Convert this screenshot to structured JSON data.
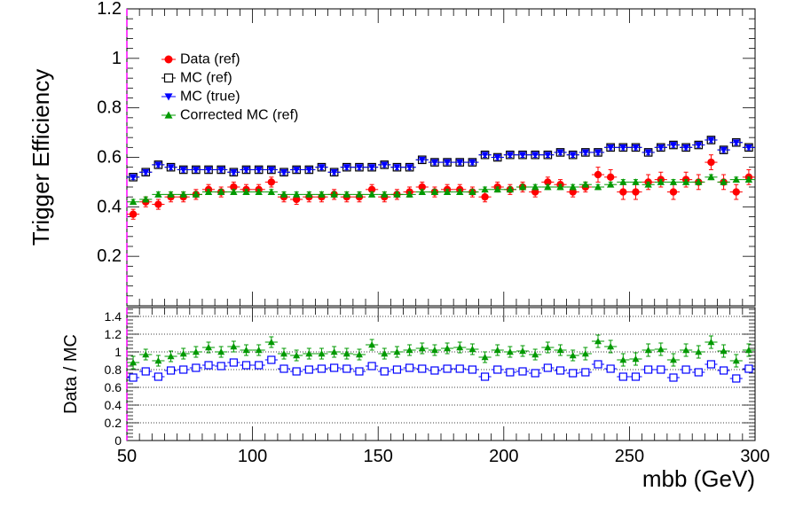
{
  "chart_data": [
    {
      "type": "scatter",
      "title": "",
      "xlabel": "",
      "ylabel": "Trigger Efficiency",
      "xlim": [
        50,
        300
      ],
      "ylim": [
        0,
        1.2
      ],
      "yticks": [
        0.2,
        0.4,
        0.6,
        0.8,
        1,
        1.2
      ],
      "yticklabels": [
        "0.2",
        "0.4",
        "0.6",
        "0.8",
        "1",
        "1.2"
      ],
      "legend_position": "top-left",
      "x": [
        52.5,
        57.5,
        62.5,
        67.5,
        72.5,
        77.5,
        82.5,
        87.5,
        92.5,
        97.5,
        102.5,
        107.5,
        112.5,
        117.5,
        122.5,
        127.5,
        132.5,
        137.5,
        142.5,
        147.5,
        152.5,
        157.5,
        162.5,
        167.5,
        172.5,
        177.5,
        182.5,
        187.5,
        192.5,
        197.5,
        202.5,
        207.5,
        212.5,
        217.5,
        222.5,
        227.5,
        232.5,
        237.5,
        242.5,
        247.5,
        252.5,
        257.5,
        262.5,
        267.5,
        272.5,
        277.5,
        282.5,
        287.5,
        292.5,
        297.5
      ],
      "series": [
        {
          "name": "Data (ref)",
          "marker": "circle",
          "color": "#ff0000",
          "values": [
            0.37,
            0.42,
            0.41,
            0.44,
            0.44,
            0.45,
            0.47,
            0.46,
            0.48,
            0.47,
            0.47,
            0.5,
            0.44,
            0.43,
            0.44,
            0.44,
            0.45,
            0.44,
            0.44,
            0.47,
            0.44,
            0.45,
            0.46,
            0.48,
            0.46,
            0.47,
            0.47,
            0.46,
            0.44,
            0.48,
            0.47,
            0.48,
            0.46,
            0.5,
            0.49,
            0.46,
            0.48,
            0.53,
            0.52,
            0.46,
            0.46,
            0.5,
            0.51,
            0.46,
            0.51,
            0.5,
            0.58,
            0.5,
            0.46,
            0.52
          ],
          "errors": [
            0.02,
            0.02,
            0.02,
            0.02,
            0.02,
            0.02,
            0.02,
            0.02,
            0.02,
            0.02,
            0.02,
            0.02,
            0.02,
            0.02,
            0.02,
            0.02,
            0.02,
            0.02,
            0.02,
            0.02,
            0.02,
            0.02,
            0.02,
            0.02,
            0.02,
            0.02,
            0.02,
            0.02,
            0.02,
            0.02,
            0.02,
            0.02,
            0.02,
            0.02,
            0.02,
            0.02,
            0.02,
            0.03,
            0.03,
            0.03,
            0.03,
            0.03,
            0.03,
            0.03,
            0.03,
            0.03,
            0.03,
            0.03,
            0.03,
            0.03
          ]
        },
        {
          "name": "MC (ref)",
          "marker": "open-square",
          "color": "#000000",
          "values": [
            0.52,
            0.54,
            0.57,
            0.56,
            0.55,
            0.55,
            0.55,
            0.55,
            0.54,
            0.55,
            0.55,
            0.55,
            0.54,
            0.55,
            0.55,
            0.56,
            0.54,
            0.56,
            0.56,
            0.56,
            0.57,
            0.56,
            0.56,
            0.59,
            0.58,
            0.58,
            0.58,
            0.58,
            0.61,
            0.6,
            0.61,
            0.61,
            0.61,
            0.61,
            0.62,
            0.61,
            0.62,
            0.62,
            0.64,
            0.64,
            0.64,
            0.62,
            0.64,
            0.65,
            0.64,
            0.65,
            0.67,
            0.63,
            0.66,
            0.64
          ],
          "errors": [
            0.01,
            0.01,
            0.01,
            0.01,
            0.01,
            0.01,
            0.01,
            0.01,
            0.01,
            0.01,
            0.01,
            0.01,
            0.01,
            0.01,
            0.01,
            0.01,
            0.01,
            0.01,
            0.01,
            0.01,
            0.01,
            0.01,
            0.01,
            0.01,
            0.01,
            0.01,
            0.01,
            0.01,
            0.01,
            0.01,
            0.01,
            0.01,
            0.01,
            0.01,
            0.01,
            0.01,
            0.01,
            0.01,
            0.01,
            0.01,
            0.01,
            0.01,
            0.01,
            0.01,
            0.01,
            0.01,
            0.01,
            0.01,
            0.01,
            0.01
          ]
        },
        {
          "name": "MC (true)",
          "marker": "down-triangle",
          "color": "#0000ff",
          "values": [
            0.52,
            0.54,
            0.57,
            0.56,
            0.55,
            0.55,
            0.55,
            0.55,
            0.54,
            0.55,
            0.55,
            0.55,
            0.54,
            0.55,
            0.55,
            0.56,
            0.54,
            0.56,
            0.56,
            0.56,
            0.57,
            0.56,
            0.56,
            0.59,
            0.58,
            0.58,
            0.58,
            0.58,
            0.61,
            0.6,
            0.61,
            0.61,
            0.61,
            0.61,
            0.62,
            0.61,
            0.62,
            0.62,
            0.64,
            0.64,
            0.64,
            0.62,
            0.64,
            0.65,
            0.64,
            0.65,
            0.67,
            0.63,
            0.66,
            0.64
          ],
          "errors": [
            0.01,
            0.01,
            0.01,
            0.01,
            0.01,
            0.01,
            0.01,
            0.01,
            0.01,
            0.01,
            0.01,
            0.01,
            0.01,
            0.01,
            0.01,
            0.01,
            0.01,
            0.01,
            0.01,
            0.01,
            0.01,
            0.01,
            0.01,
            0.01,
            0.01,
            0.01,
            0.01,
            0.01,
            0.01,
            0.01,
            0.01,
            0.01,
            0.01,
            0.01,
            0.01,
            0.01,
            0.01,
            0.01,
            0.01,
            0.01,
            0.01,
            0.01,
            0.01,
            0.01,
            0.01,
            0.01,
            0.01,
            0.01,
            0.01,
            0.01
          ]
        },
        {
          "name": "Corrected MC (ref)",
          "marker": "up-triangle",
          "color": "#009900",
          "values": [
            0.42,
            0.43,
            0.45,
            0.45,
            0.45,
            0.45,
            0.46,
            0.46,
            0.46,
            0.46,
            0.46,
            0.46,
            0.45,
            0.45,
            0.45,
            0.45,
            0.45,
            0.45,
            0.45,
            0.45,
            0.45,
            0.45,
            0.45,
            0.46,
            0.46,
            0.46,
            0.46,
            0.46,
            0.47,
            0.47,
            0.47,
            0.48,
            0.48,
            0.48,
            0.48,
            0.48,
            0.49,
            0.48,
            0.49,
            0.5,
            0.5,
            0.49,
            0.5,
            0.5,
            0.5,
            0.5,
            0.52,
            0.5,
            0.51,
            0.51
          ],
          "errors": [
            0.01,
            0.01,
            0.01,
            0.01,
            0.01,
            0.01,
            0.01,
            0.01,
            0.01,
            0.01,
            0.01,
            0.01,
            0.01,
            0.01,
            0.01,
            0.01,
            0.01,
            0.01,
            0.01,
            0.01,
            0.01,
            0.01,
            0.01,
            0.01,
            0.01,
            0.01,
            0.01,
            0.01,
            0.01,
            0.01,
            0.01,
            0.01,
            0.01,
            0.01,
            0.01,
            0.01,
            0.01,
            0.01,
            0.01,
            0.01,
            0.01,
            0.01,
            0.01,
            0.01,
            0.01,
            0.01,
            0.01,
            0.01,
            0.01,
            0.01
          ]
        }
      ]
    },
    {
      "type": "scatter",
      "title": "",
      "xlabel": "mbb (GeV)",
      "ylabel": "Data / MC",
      "xlim": [
        50,
        300
      ],
      "ylim": [
        0,
        1.5
      ],
      "grid": "horizontal-dotted",
      "xticks": [
        50,
        100,
        150,
        200,
        250,
        300
      ],
      "xticklabels": [
        "50",
        "100",
        "150",
        "200",
        "250",
        "300"
      ],
      "yticks": [
        0,
        0.2,
        0.4,
        0.6,
        0.8,
        1,
        1.2,
        1.4
      ],
      "yticklabels": [
        "0",
        "0.2",
        "0.4",
        "0.6",
        "0.8",
        "1",
        "1.2",
        "1.4"
      ],
      "x": [
        52.5,
        57.5,
        62.5,
        67.5,
        72.5,
        77.5,
        82.5,
        87.5,
        92.5,
        97.5,
        102.5,
        107.5,
        112.5,
        117.5,
        122.5,
        127.5,
        132.5,
        137.5,
        142.5,
        147.5,
        152.5,
        157.5,
        162.5,
        167.5,
        172.5,
        177.5,
        182.5,
        187.5,
        192.5,
        197.5,
        202.5,
        207.5,
        212.5,
        217.5,
        222.5,
        227.5,
        232.5,
        237.5,
        242.5,
        247.5,
        252.5,
        257.5,
        262.5,
        267.5,
        272.5,
        277.5,
        282.5,
        287.5,
        292.5,
        297.5
      ],
      "series": [
        {
          "name": "",
          "marker": "up-triangle",
          "color": "#009900",
          "values": [
            0.88,
            0.97,
            0.9,
            0.95,
            0.98,
            1.0,
            1.05,
            1.0,
            1.06,
            1.02,
            1.02,
            1.11,
            0.98,
            0.96,
            0.98,
            0.98,
            1.0,
            0.98,
            0.97,
            1.08,
            0.98,
            1.0,
            1.02,
            1.04,
            1.02,
            1.04,
            1.05,
            1.03,
            0.94,
            1.02,
            1.0,
            1.01,
            0.97,
            1.05,
            1.02,
            0.96,
            0.98,
            1.12,
            1.06,
            0.91,
            0.92,
            1.02,
            1.03,
            0.91,
            1.02,
            1.0,
            1.11,
            1.01,
            0.9,
            1.02
          ],
          "errors": [
            0.07,
            0.06,
            0.06,
            0.06,
            0.06,
            0.06,
            0.06,
            0.06,
            0.06,
            0.06,
            0.06,
            0.06,
            0.06,
            0.06,
            0.06,
            0.06,
            0.06,
            0.06,
            0.06,
            0.06,
            0.06,
            0.06,
            0.06,
            0.06,
            0.06,
            0.06,
            0.06,
            0.06,
            0.06,
            0.06,
            0.06,
            0.06,
            0.06,
            0.06,
            0.06,
            0.06,
            0.07,
            0.07,
            0.07,
            0.07,
            0.07,
            0.07,
            0.07,
            0.07,
            0.07,
            0.07,
            0.07,
            0.07,
            0.07,
            0.07
          ]
        },
        {
          "name": "",
          "marker": "open-square",
          "color": "#0000ff",
          "values": [
            0.71,
            0.78,
            0.72,
            0.79,
            0.8,
            0.82,
            0.85,
            0.84,
            0.88,
            0.85,
            0.85,
            0.91,
            0.81,
            0.78,
            0.8,
            0.81,
            0.82,
            0.81,
            0.78,
            0.84,
            0.78,
            0.8,
            0.82,
            0.81,
            0.79,
            0.81,
            0.81,
            0.8,
            0.72,
            0.8,
            0.77,
            0.78,
            0.76,
            0.82,
            0.79,
            0.76,
            0.77,
            0.86,
            0.81,
            0.72,
            0.72,
            0.8,
            0.8,
            0.71,
            0.8,
            0.77,
            0.86,
            0.79,
            0.7,
            0.81
          ],
          "errors": [
            0.0,
            0.0,
            0.0,
            0.0,
            0.0,
            0.0,
            0.0,
            0.0,
            0.0,
            0.0,
            0.0,
            0.0,
            0.0,
            0.0,
            0.0,
            0.0,
            0.0,
            0.0,
            0.0,
            0.0,
            0.0,
            0.0,
            0.0,
            0.0,
            0.0,
            0.0,
            0.0,
            0.0,
            0.0,
            0.0,
            0.0,
            0.0,
            0.0,
            0.0,
            0.0,
            0.0,
            0.0,
            0.0,
            0.0,
            0.0,
            0.0,
            0.0,
            0.0,
            0.0,
            0.0,
            0.0,
            0.0,
            0.0,
            0.0,
            0.0
          ]
        }
      ]
    }
  ]
}
